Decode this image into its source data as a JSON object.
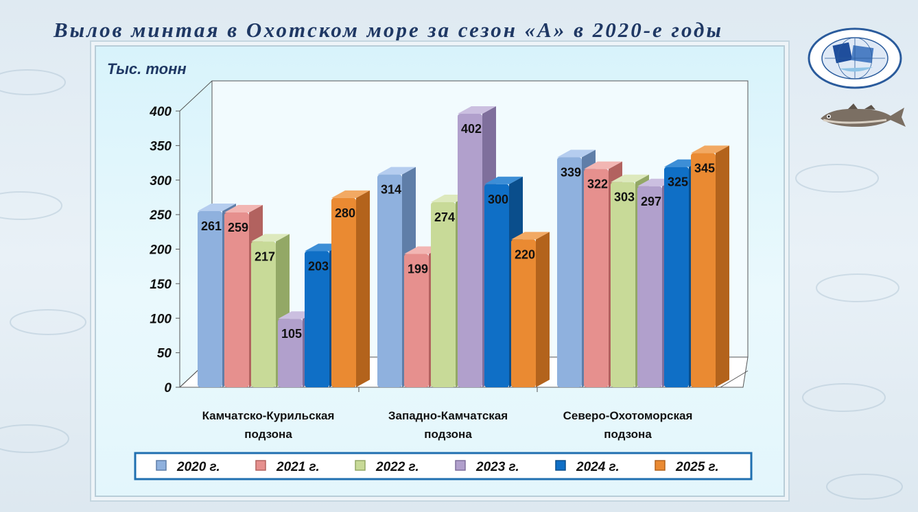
{
  "title": "Вылов минтая в Охотском море за сезон «А» в 2020-е годы",
  "colors": {
    "2020": {
      "front": "#8fb1de",
      "side": "#5f7ea8",
      "top": "#b5cdef"
    },
    "2021": {
      "front": "#e6908e",
      "side": "#b2625f",
      "top": "#f2b6b3"
    },
    "2022": {
      "front": "#c8da98",
      "side": "#93a866",
      "top": "#dde9bd"
    },
    "2023": {
      "front": "#b1a0cc",
      "side": "#7f6f9c",
      "top": "#cbbfe0"
    },
    "2024": {
      "front": "#0f6fc6",
      "side": "#0a4e8c",
      "top": "#3d8ed6"
    },
    "2025": {
      "front": "#ea8a32",
      "side": "#b3631c",
      "top": "#f2a963"
    }
  },
  "icons": {
    "logo": "vniro-logo-icon",
    "fish": "pollock-fish-icon"
  },
  "chart_data": {
    "type": "bar",
    "title": "Вылов минтая в Охотском море за сезон «А» в 2020-е годы",
    "ylabel": "Тыс. тонн",
    "ylim": [
      0,
      400
    ],
    "yticks": [
      0,
      50,
      100,
      150,
      200,
      250,
      300,
      350,
      400
    ],
    "grid": false,
    "legend_position": "bottom",
    "categories": [
      [
        "Камчатско-Курильская",
        "подзона"
      ],
      [
        "Западно-Камчатская",
        "подзона"
      ],
      [
        "Северо-Охотоморская",
        "подзона"
      ]
    ],
    "series": [
      {
        "name": "2020 г.",
        "key": "2020",
        "values": [
          261,
          314,
          339
        ]
      },
      {
        "name": "2021 г.",
        "key": "2021",
        "values": [
          259,
          199,
          322
        ]
      },
      {
        "name": "2022 г.",
        "key": "2022",
        "values": [
          217,
          274,
          303
        ]
      },
      {
        "name": "2023 г.",
        "key": "2023",
        "values": [
          105,
          402,
          297
        ]
      },
      {
        "name": "2024 г.",
        "key": "2024",
        "values": [
          203,
          300,
          325
        ]
      },
      {
        "name": "2025 г.",
        "key": "2025",
        "values": [
          280,
          220,
          345
        ]
      }
    ]
  }
}
